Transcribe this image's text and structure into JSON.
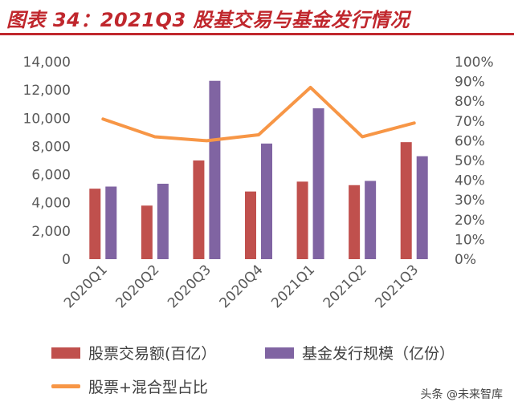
{
  "title": "图表 34：2021Q3 股基交易与基金发行情况",
  "watermark": "头条 @未来智库",
  "colors": {
    "bar1": "#c0504d",
    "bar2": "#8064a2",
    "line": "#f79646",
    "title": "#c0272d"
  },
  "chart_data": {
    "type": "bar",
    "categories": [
      "2020Q1",
      "2020Q2",
      "2020Q3",
      "2020Q4",
      "2021Q1",
      "2021Q2",
      "2021Q3"
    ],
    "series": [
      {
        "name": "股票交易额(百亿）",
        "type": "bar",
        "axis": "left",
        "values": [
          5000,
          3800,
          7000,
          4800,
          5500,
          5250,
          8300
        ]
      },
      {
        "name": "基金发行规模（亿份）",
        "type": "bar",
        "axis": "left",
        "values": [
          5150,
          5350,
          12650,
          8200,
          10700,
          5550,
          7300
        ]
      },
      {
        "name": "股票+混合型占比",
        "type": "line",
        "axis": "right",
        "values": [
          0.71,
          0.62,
          0.6,
          0.63,
          0.87,
          0.62,
          0.69
        ]
      }
    ],
    "ylim": [
      0,
      14000
    ],
    "yticks": [
      "0",
      "2,000",
      "4,000",
      "6,000",
      "8,000",
      "10,000",
      "12,000",
      "14,000"
    ],
    "y2lim": [
      0,
      1
    ],
    "y2ticks": [
      "0%",
      "10%",
      "20%",
      "30%",
      "40%",
      "50%",
      "60%",
      "70%",
      "80%",
      "90%",
      "100%"
    ],
    "grid": false,
    "legend_position": "bottom"
  }
}
